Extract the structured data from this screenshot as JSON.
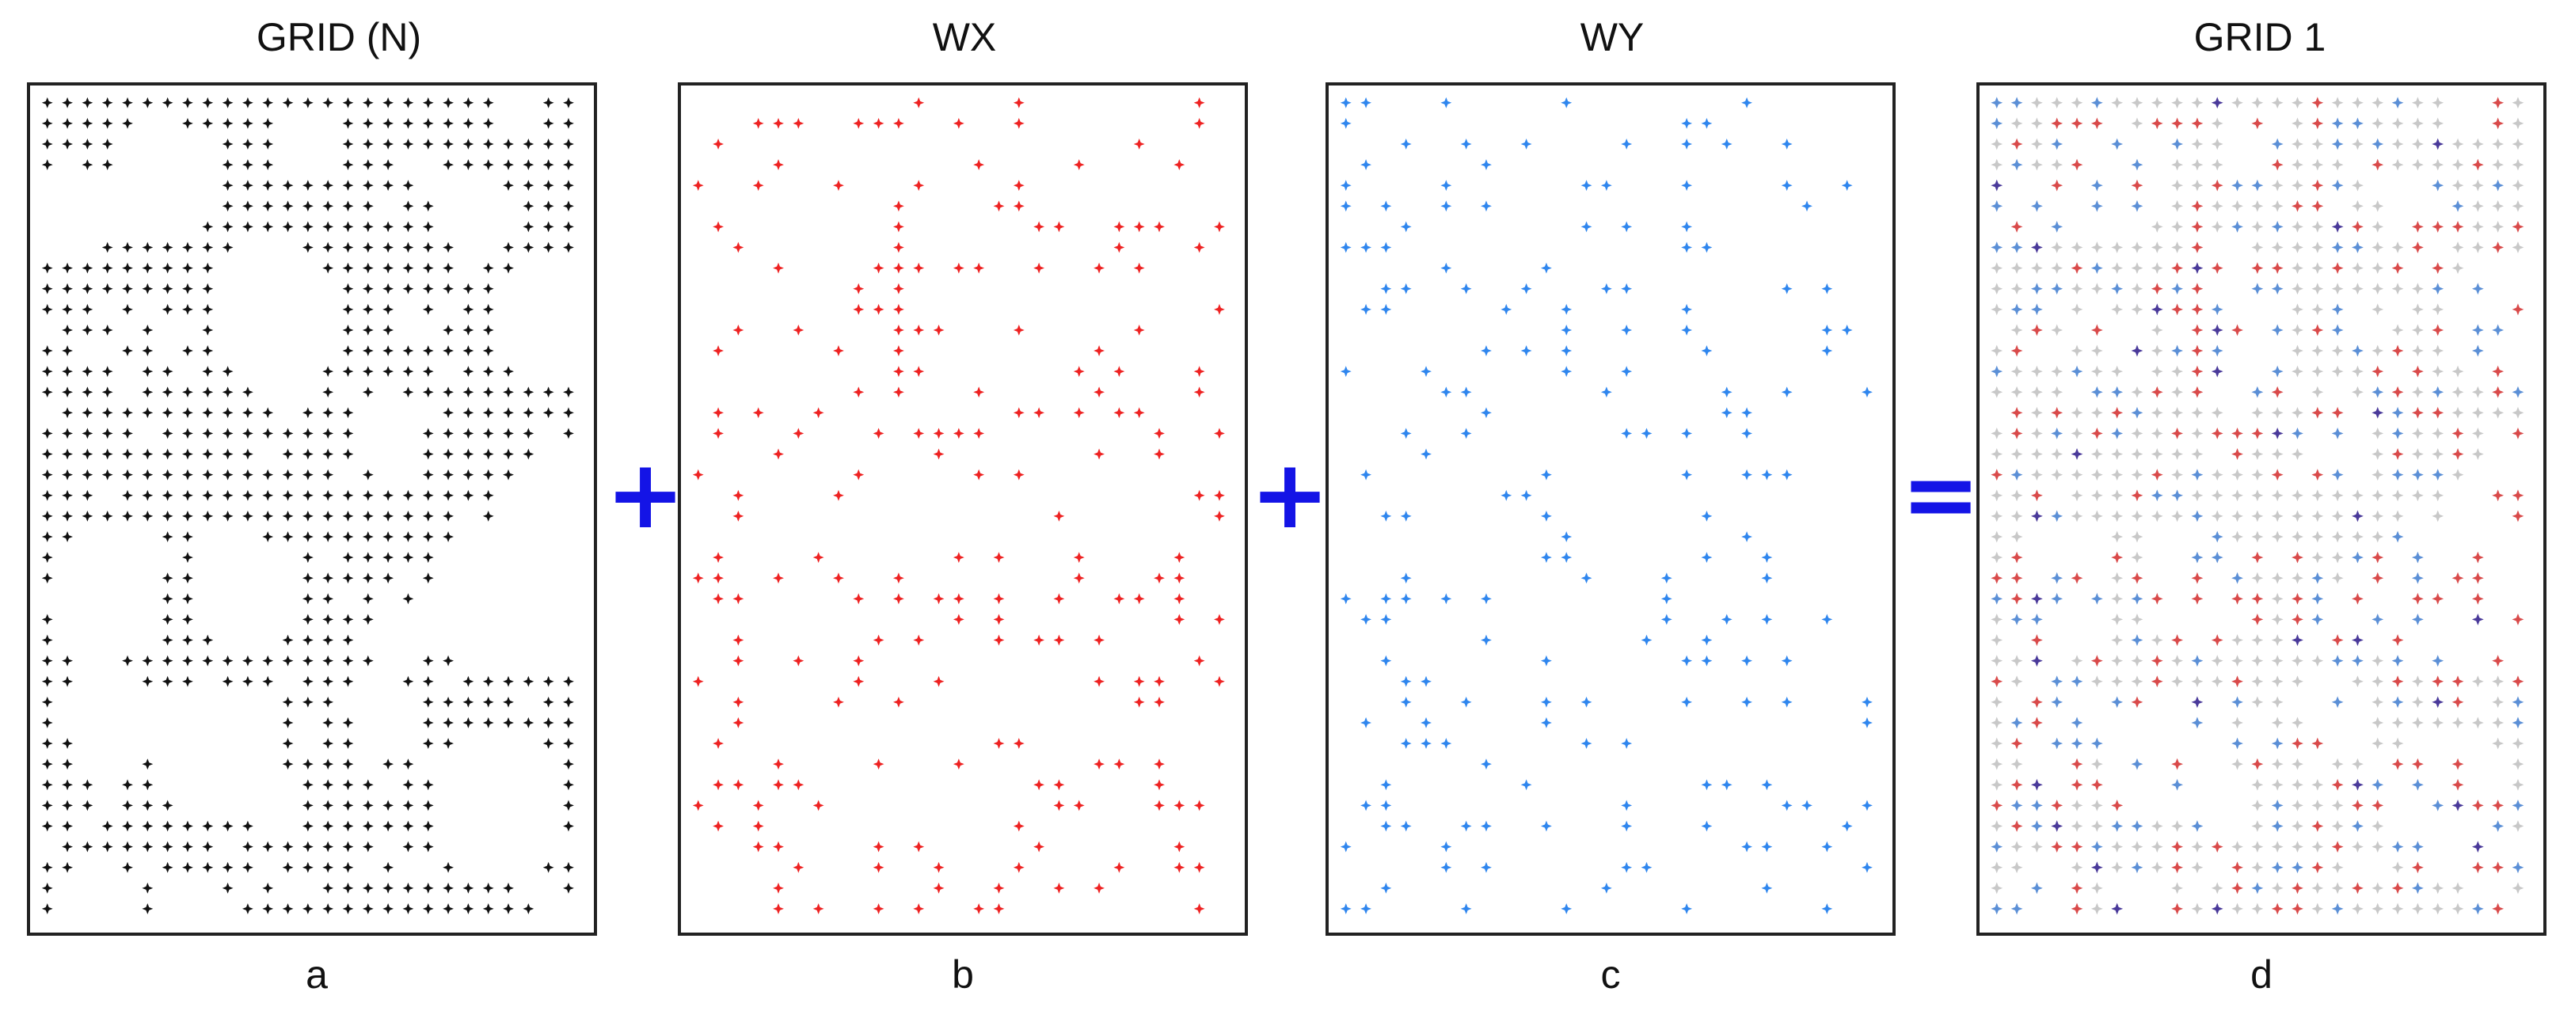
{
  "panels": [
    {
      "id": "a",
      "title": "GRID (N)",
      "caption": "a",
      "color": "#111111"
    },
    {
      "id": "b",
      "title": "WX",
      "caption": "b",
      "color": "#ee2222"
    },
    {
      "id": "c",
      "title": "WY",
      "caption": "c",
      "color": "#2f86ee"
    },
    {
      "id": "d",
      "title": "GRID 1",
      "caption": "d",
      "color": "#bfbfbf"
    }
  ],
  "operators": {
    "plus1": "+",
    "plus2": "+",
    "equals": "="
  },
  "colors": {
    "grid": "#111111",
    "wx": "#ee2222",
    "wy": "#2f86ee",
    "grid_faded": "#c8c8c8",
    "overlap": "#4a3a9a",
    "operator": "#1414e6"
  }
}
